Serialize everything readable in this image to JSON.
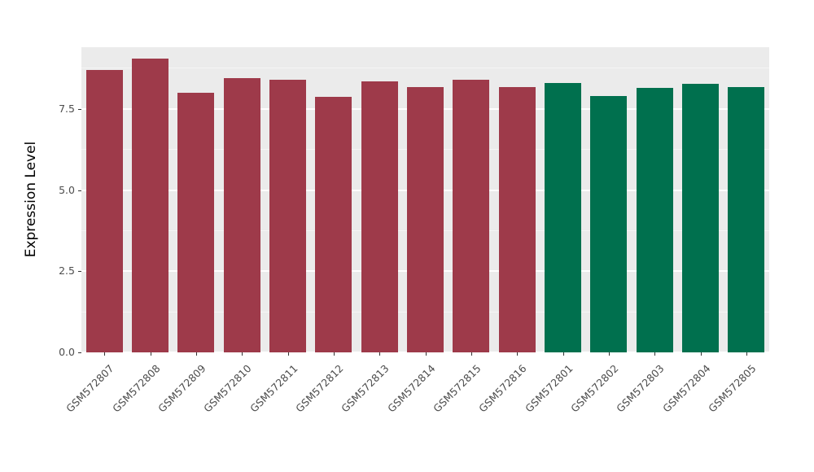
{
  "chart_data": {
    "type": "bar",
    "title": "",
    "xlabel": "",
    "ylabel": "Expression Level",
    "categories": [
      "GSM572807",
      "GSM572808",
      "GSM572809",
      "GSM572810",
      "GSM572811",
      "GSM572812",
      "GSM572813",
      "GSM572814",
      "GSM572815",
      "GSM572816",
      "GSM572801",
      "GSM572802",
      "GSM572803",
      "GSM572804",
      "GSM572805"
    ],
    "values": [
      8.7,
      9.05,
      8.0,
      8.45,
      8.4,
      7.87,
      8.35,
      8.17,
      8.4,
      8.17,
      8.3,
      7.9,
      8.15,
      8.28,
      8.18
    ],
    "groups": [
      "group1",
      "group1",
      "group1",
      "group1",
      "group1",
      "group1",
      "group1",
      "group1",
      "group1",
      "group1",
      "group2",
      "group2",
      "group2",
      "group2",
      "group2"
    ],
    "group_colors": {
      "group1": "#9E3A4A",
      "group2": "#00704E"
    },
    "ylim": [
      0,
      9.4
    ],
    "y_ticks": [
      0,
      2.5,
      5,
      7.5
    ],
    "y_tick_labels": [
      "0.0",
      "2.5",
      "5.0",
      "7.5"
    ],
    "y_minor_ticks": [
      1.25,
      3.75,
      6.25,
      8.75
    ],
    "grid": "on",
    "legend": "none",
    "panel_background": "#EBEBEB",
    "gridline_color": "#FFFFFF"
  }
}
